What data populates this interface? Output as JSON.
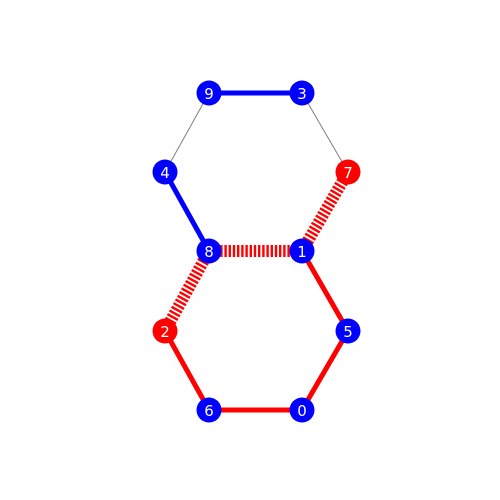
{
  "graph": {
    "colors": {
      "red": "#ff0000",
      "blue": "#0000ff",
      "gray": "#808080",
      "label": "#ffffff"
    },
    "nodes": [
      {
        "id": "0",
        "label": "0",
        "color": "blue"
      },
      {
        "id": "1",
        "label": "1",
        "color": "blue"
      },
      {
        "id": "2",
        "label": "2",
        "color": "red"
      },
      {
        "id": "3",
        "label": "3",
        "color": "blue"
      },
      {
        "id": "4",
        "label": "4",
        "color": "blue"
      },
      {
        "id": "5",
        "label": "5",
        "color": "blue"
      },
      {
        "id": "6",
        "label": "6",
        "color": "blue"
      },
      {
        "id": "7",
        "label": "7",
        "color": "red"
      },
      {
        "id": "8",
        "label": "8",
        "color": "blue"
      },
      {
        "id": "9",
        "label": "9",
        "color": "blue"
      }
    ],
    "edges": [
      {
        "source": "9",
        "target": "3",
        "color": "blue",
        "style": "solid"
      },
      {
        "source": "9",
        "target": "4",
        "color": "gray",
        "style": "thin"
      },
      {
        "source": "3",
        "target": "7",
        "color": "gray",
        "style": "thin"
      },
      {
        "source": "4",
        "target": "8",
        "color": "blue",
        "style": "solid"
      },
      {
        "source": "8",
        "target": "1",
        "color": "red",
        "style": "hatched"
      },
      {
        "source": "1",
        "target": "7",
        "color": "red",
        "style": "hatched"
      },
      {
        "source": "8",
        "target": "2",
        "color": "red",
        "style": "hatched"
      },
      {
        "source": "1",
        "target": "5",
        "color": "red",
        "style": "solid"
      },
      {
        "source": "2",
        "target": "6",
        "color": "red",
        "style": "solid"
      },
      {
        "source": "6",
        "target": "0",
        "color": "red",
        "style": "solid"
      },
      {
        "source": "0",
        "target": "5",
        "color": "red",
        "style": "solid"
      }
    ]
  }
}
